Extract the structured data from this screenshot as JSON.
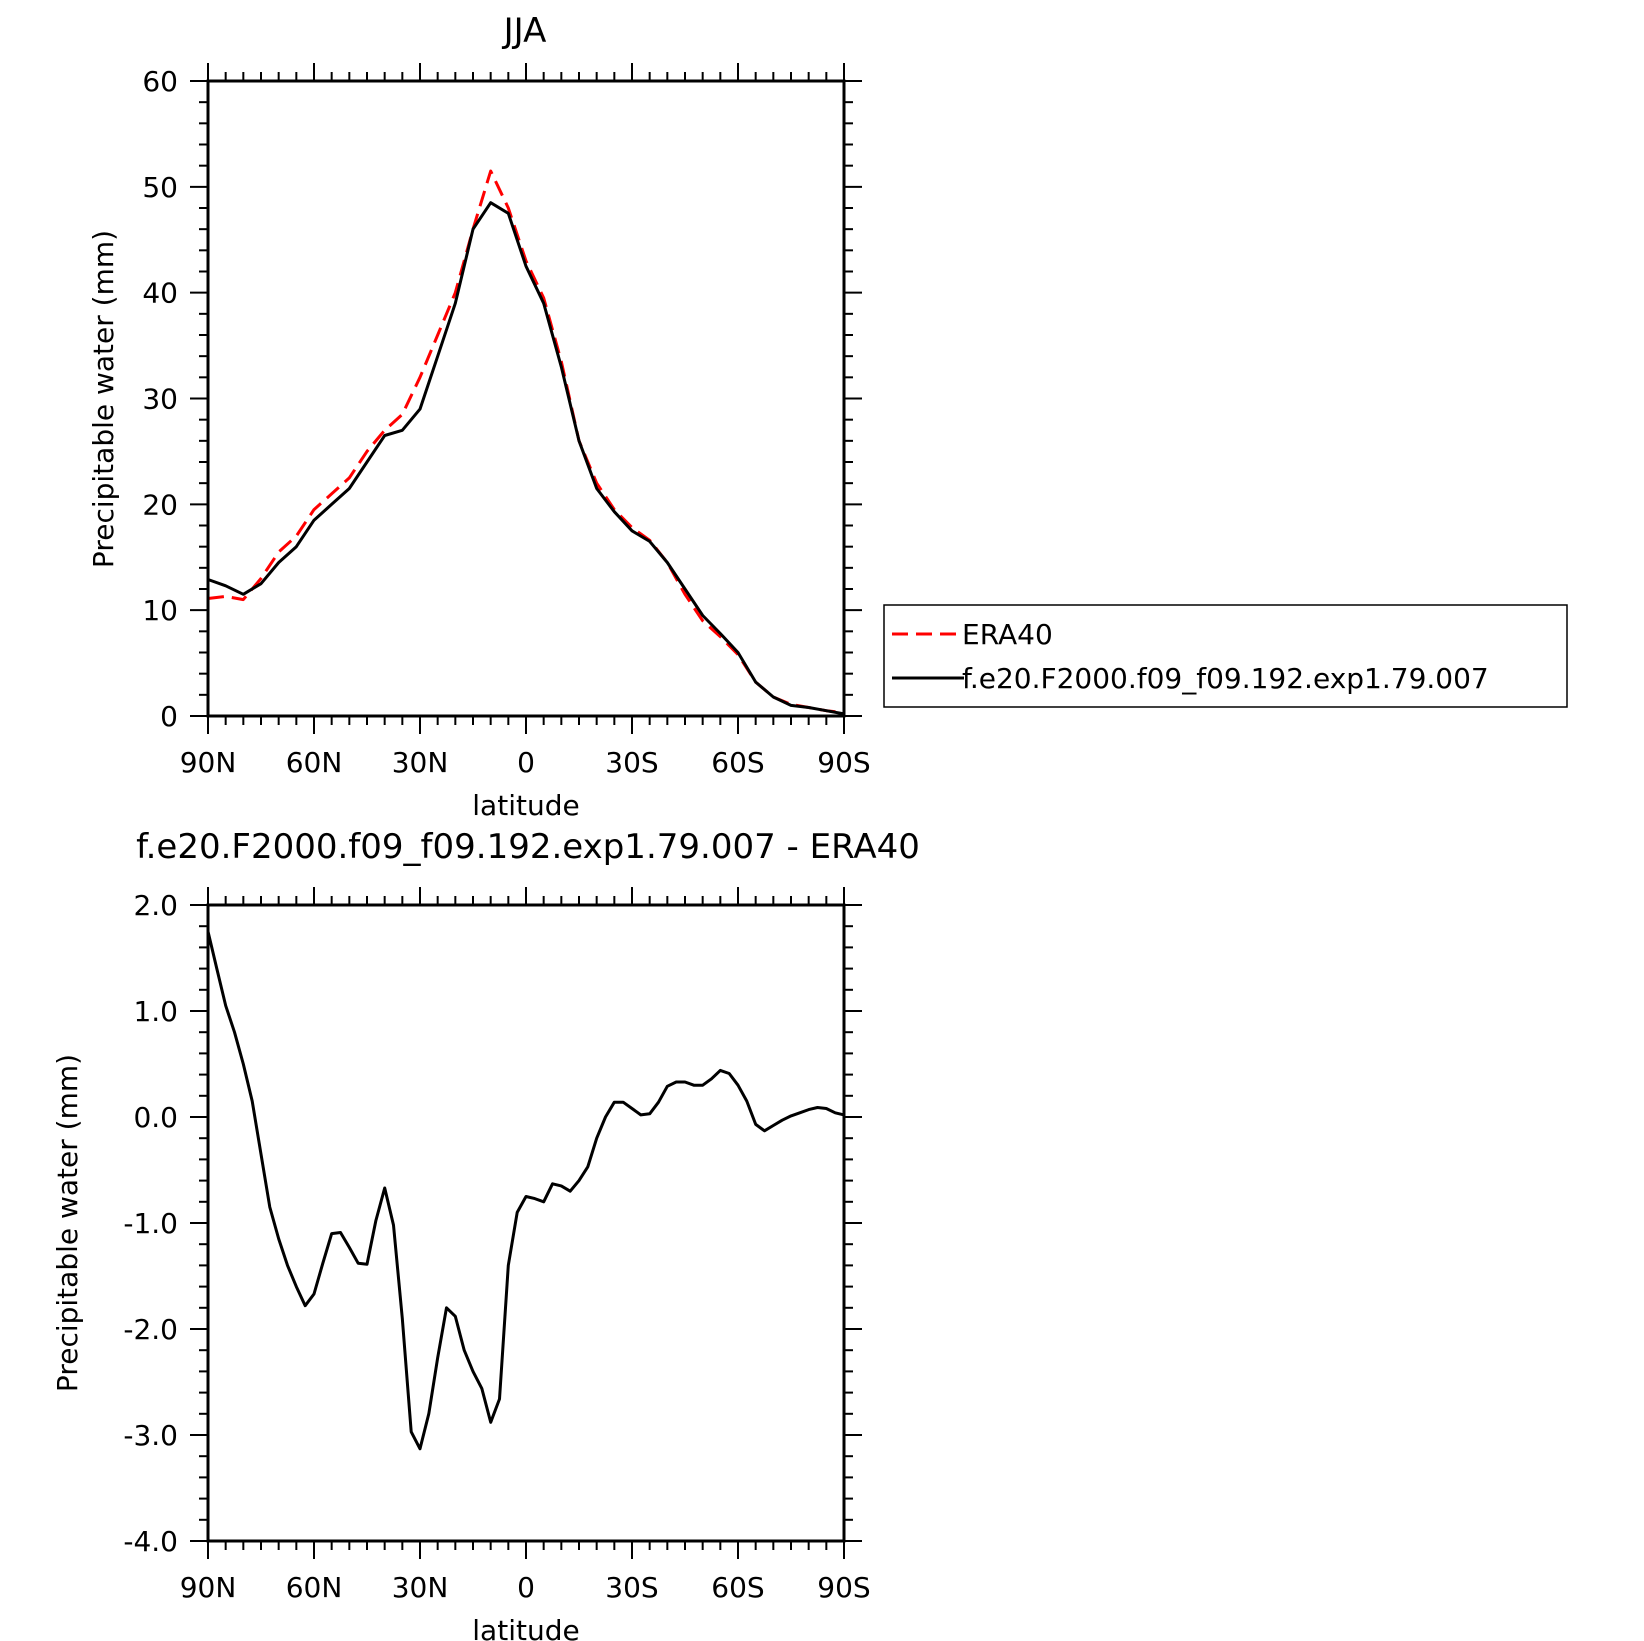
{
  "chart_data": [
    {
      "type": "line",
      "title": "JJA",
      "xlabel": "latitude",
      "ylabel": "Precipitable water (mm)",
      "xlim": [
        90,
        -90
      ],
      "ylim": [
        0,
        60
      ],
      "yticks": [
        "0",
        "10",
        "20",
        "30",
        "40",
        "50",
        "60"
      ],
      "xticks": [
        "90N",
        "60N",
        "30N",
        "0",
        "30S",
        "60S",
        "90S"
      ],
      "xtick_values": [
        90,
        60,
        30,
        0,
        -30,
        -60,
        -90
      ],
      "legend_position": "right",
      "series": [
        {
          "name": "ERA40",
          "color": "#ff0000",
          "dash": true,
          "x": [
            90,
            85,
            80,
            75,
            70,
            65,
            60,
            55,
            50,
            45,
            40,
            35,
            30,
            25,
            20,
            15,
            10,
            5,
            0,
            -5,
            -10,
            -15,
            -20,
            -25,
            -30,
            -35,
            -40,
            -45,
            -50,
            -55,
            -60,
            -65,
            -70,
            -75,
            -80,
            -85,
            -90
          ],
          "y": [
            11.1,
            11.3,
            11.0,
            13.0,
            15.5,
            17.0,
            19.5,
            21.0,
            22.5,
            25.0,
            27.0,
            28.5,
            32.0,
            36.0,
            40.0,
            46.0,
            51.5,
            48.0,
            43.0,
            39.5,
            33.5,
            26.0,
            22.0,
            19.5,
            17.8,
            16.6,
            14.5,
            11.5,
            9.0,
            7.5,
            5.8,
            3.2,
            1.8,
            1.1,
            0.8,
            0.5,
            0.3
          ]
        },
        {
          "name": "f.e20.F2000.f09_f09.192.exp1.79.007",
          "color": "#000000",
          "dash": false,
          "x": [
            90,
            85,
            80,
            75,
            70,
            65,
            60,
            55,
            50,
            45,
            40,
            35,
            30,
            25,
            20,
            15,
            10,
            5,
            0,
            -5,
            -10,
            -15,
            -20,
            -25,
            -30,
            -35,
            -40,
            -45,
            -50,
            -55,
            -60,
            -65,
            -70,
            -75,
            -80,
            -85,
            -90
          ],
          "y": [
            12.9,
            12.3,
            11.5,
            12.5,
            14.5,
            16.0,
            18.5,
            20.0,
            21.5,
            24.0,
            26.5,
            27.0,
            29.0,
            34.0,
            39.0,
            46.0,
            48.5,
            47.5,
            42.5,
            39.0,
            33.0,
            26.0,
            21.5,
            19.3,
            17.5,
            16.5,
            14.5,
            12.0,
            9.5,
            7.8,
            6.0,
            3.2,
            1.8,
            1.0,
            0.8,
            0.5,
            0.2
          ]
        }
      ]
    },
    {
      "type": "line",
      "title": "f.e20.F2000.f09_f09.192.exp1.79.007 - ERA40",
      "xlabel": "latitude",
      "ylabel": "Precipitable water (mm)",
      "xlim": [
        90,
        -90
      ],
      "ylim": [
        -4.0,
        2.0
      ],
      "yticks": [
        "-4.0",
        "-3.0",
        "-2.0",
        "-1.0",
        "0.0",
        "1.0",
        "2.0"
      ],
      "xticks": [
        "90N",
        "60N",
        "30N",
        "0",
        "30S",
        "60S",
        "90S"
      ],
      "xtick_values": [
        90,
        60,
        30,
        0,
        -30,
        -60,
        -90
      ],
      "series": [
        {
          "color": "#000000",
          "dash": false,
          "x": [
            90,
            87.5,
            85,
            82.5,
            80,
            77.5,
            75,
            72.5,
            70,
            67.5,
            65,
            62.5,
            60,
            57.5,
            55,
            52.5,
            50,
            47.5,
            45,
            42.5,
            40,
            37.5,
            35,
            32.5,
            30,
            27.5,
            25,
            22.5,
            20,
            17.5,
            15,
            12.5,
            10,
            7.5,
            5,
            2.5,
            0,
            -2.5,
            -5,
            -7.5,
            -10,
            -12.5,
            -15,
            -17.5,
            -20,
            -22.5,
            -25,
            -27.5,
            -30,
            -32.5,
            -35,
            -37.5,
            -40,
            -42.5,
            -45,
            -47.5,
            -50,
            -52.5,
            -55,
            -57.5,
            -60,
            -62.5,
            -65,
            -67.5,
            -70,
            -72.5,
            -75,
            -77.5,
            -80,
            -82.5,
            -85,
            -87.5,
            -90
          ],
          "y": [
            1.75,
            1.4,
            1.05,
            0.8,
            0.5,
            0.15,
            -0.35,
            -0.85,
            -1.15,
            -1.4,
            -1.6,
            -1.78,
            -1.67,
            -1.38,
            -1.1,
            -1.09,
            -1.23,
            -1.38,
            -1.39,
            -0.98,
            -0.67,
            -1.02,
            -1.9,
            -2.97,
            -3.13,
            -2.8,
            -2.27,
            -1.8,
            -1.88,
            -2.2,
            -2.4,
            -2.56,
            -2.88,
            -2.66,
            -1.4,
            -0.9,
            -0.75,
            -0.77,
            -0.8,
            -0.63,
            -0.65,
            -0.7,
            -0.6,
            -0.47,
            -0.2,
            0.0,
            0.14,
            0.14,
            0.08,
            0.02,
            0.03,
            0.14,
            0.29,
            0.33,
            0.33,
            0.3,
            0.3,
            0.36,
            0.44,
            0.41,
            0.3,
            0.15,
            -0.07,
            -0.13,
            -0.08,
            -0.03,
            0.01,
            0.04,
            0.07,
            0.09,
            0.08,
            0.04,
            0.02
          ]
        }
      ]
    }
  ]
}
